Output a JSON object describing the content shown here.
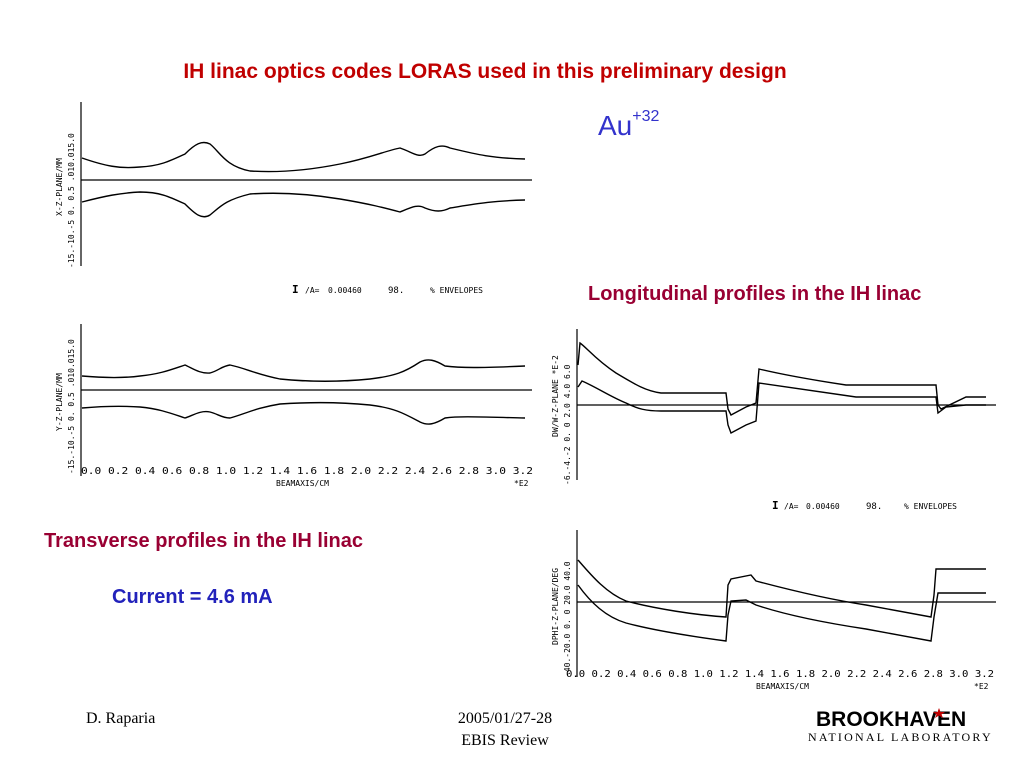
{
  "slide": {
    "title": "IH linac optics codes LORAS used in this  preliminary design",
    "ion_base": "Au",
    "ion_charge": "+32",
    "longitudinal_caption": "Longitudinal profiles in the IH linac",
    "transverse_caption": "Transverse profiles in the IH linac",
    "current_label": "Current = 4.6 mA"
  },
  "plots": {
    "xz": {
      "ylabel": "X-Z-PLANE/MM",
      "ticks": "-15.-10.-5 0. 0.5 .010.015.0"
    },
    "yz": {
      "ylabel": "Y-Z-PLANE/MM",
      "ticks": "-15.-10.-5 0. 0.5 .010.015.0"
    },
    "dw": {
      "ylabel": "DW/W-Z-PLANE *E-2",
      "ticks": "-6.-4.-2 0. 0 2.0 4.0 6.0"
    },
    "dphi": {
      "ylabel": "DPHI-Z-PLANE/DEG",
      "ticks": "-40.-20.0 0. 0 20.0 40.0"
    },
    "x_ticks_left": "0.0 0.2 0.4 0.6 0.8 1.0 1.2 1.4 1.6 1.8 2.0 2.2 2.4 2.6 2.8 3.0 3.2",
    "x_ticks_right": "0.0 0.2 0.4 0.6 0.8 1.0 1.2 1.4 1.6 1.8 2.0 2.2 2.4 2.6 2.8 3.0 3.2",
    "x_axis_label": "BEAMAXIS/CM",
    "x_scale": "*E2",
    "legend_left": {
      "i": "I",
      "ia": "/A=",
      "value": "0.00460",
      "pct": "98.",
      "env": "% ENVELOPES"
    },
    "legend_right": {
      "i": "I",
      "ia": "/A=",
      "value": "0.00460",
      "pct": "98.",
      "env": "% ENVELOPES"
    }
  },
  "footer": {
    "author": "D. Raparia",
    "date": "2005/01/27-28",
    "event": "EBIS Review",
    "logo_main": "BROOKHAVEN",
    "logo_sub": "NATIONAL LABORATORY"
  }
}
